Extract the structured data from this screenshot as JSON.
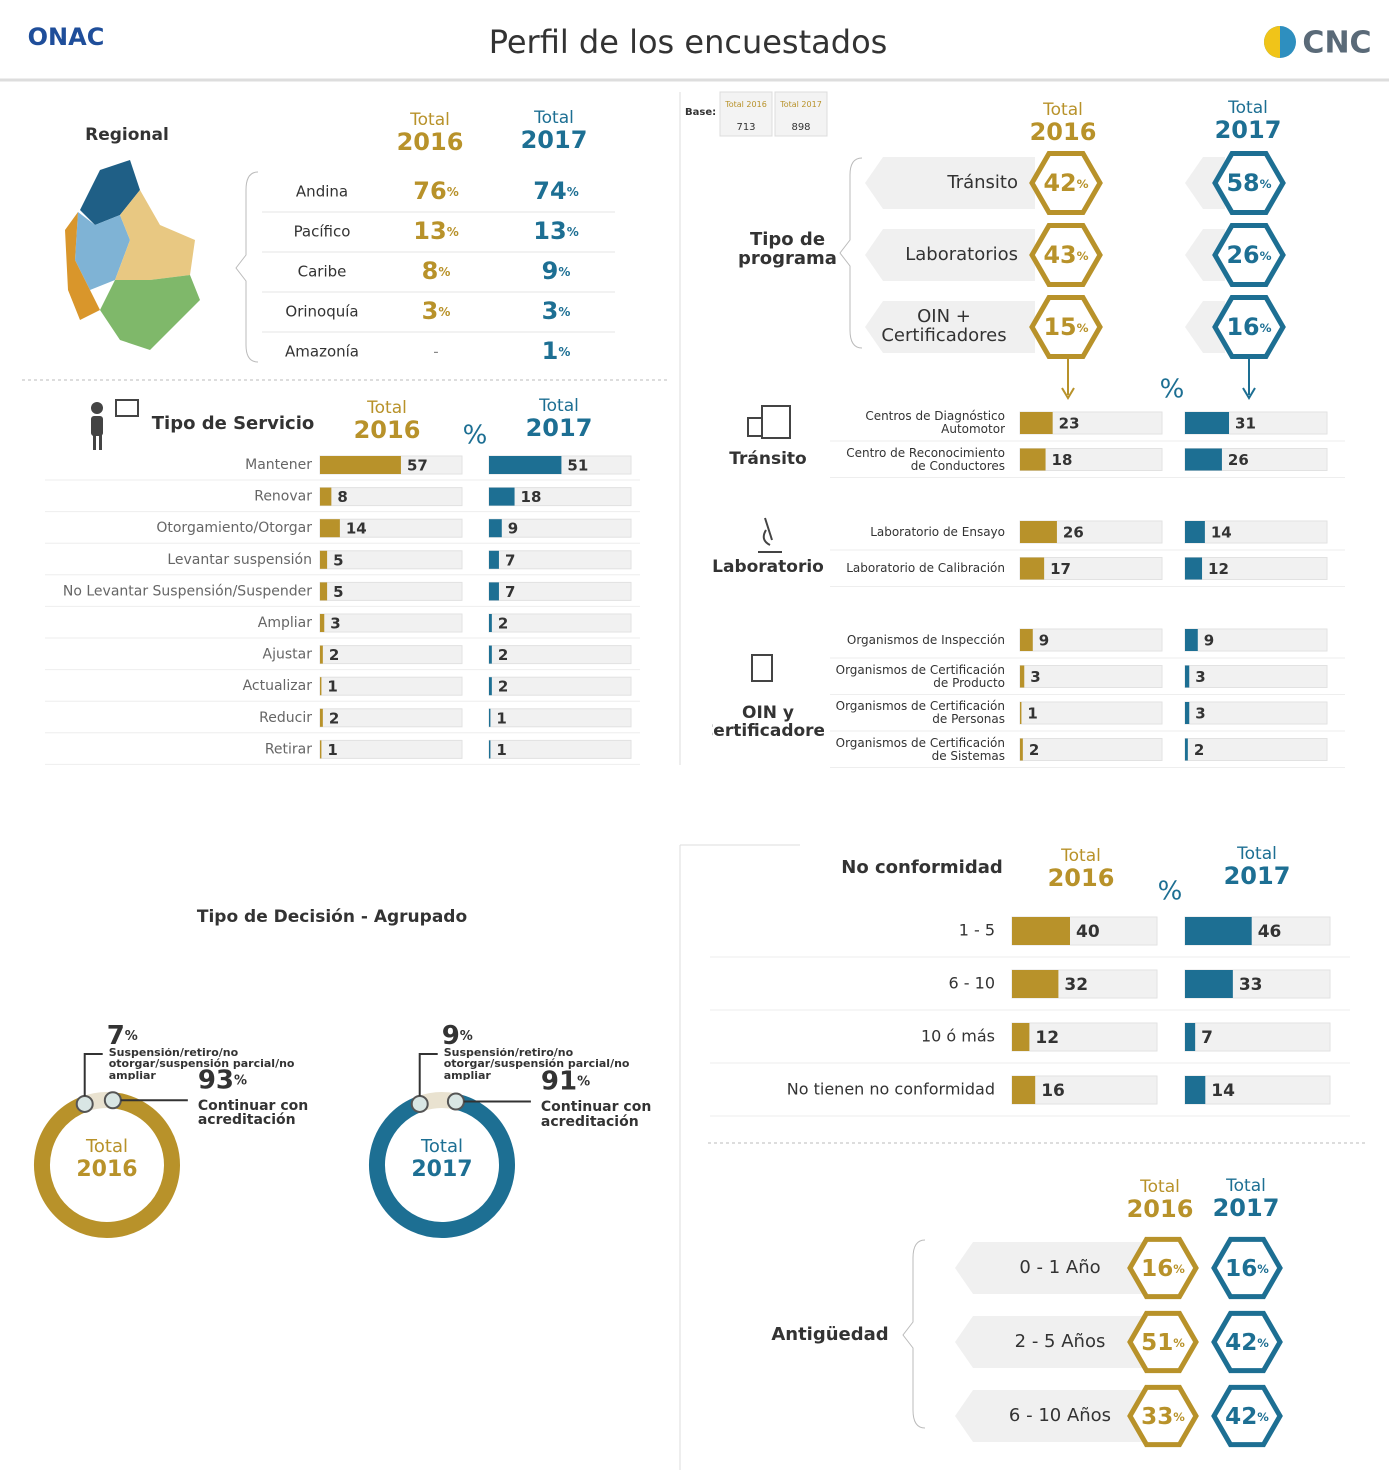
{
  "header": {
    "title": "Perfil de los encuestados",
    "logo_left": "ONAC",
    "logo_right": "CNC"
  },
  "labels": {
    "total": "Total",
    "year_2016": "2016",
    "year_2017": "2017",
    "percent": "%"
  },
  "base": {
    "label": "Base:",
    "columns": [
      "Total 2016",
      "Total 2017"
    ],
    "values": [
      713,
      898
    ]
  },
  "regional": {
    "title": "Regional",
    "missing_label": "-",
    "rows": [
      {
        "name": "Andina",
        "values": [
          76,
          74
        ]
      },
      {
        "name": "Pacífico",
        "values": [
          13,
          13
        ]
      },
      {
        "name": "Caribe",
        "values": [
          8,
          9
        ]
      },
      {
        "name": "Orinoquía",
        "values": [
          3,
          3
        ]
      },
      {
        "name": "Amazonía",
        "values": [
          null,
          1
        ]
      }
    ]
  },
  "servicio": {
    "title": "Tipo de Servicio",
    "xlim": [
      0,
      100
    ],
    "rows": [
      {
        "name": "Mantener",
        "values": [
          57,
          51
        ]
      },
      {
        "name": "Renovar",
        "values": [
          8,
          18
        ]
      },
      {
        "name": "Otorgamiento/Otorgar",
        "values": [
          14,
          9
        ]
      },
      {
        "name": "Levantar suspensión",
        "values": [
          5,
          7
        ]
      },
      {
        "name": "No Levantar Suspensión/Suspender",
        "values": [
          5,
          7
        ]
      },
      {
        "name": "Ampliar",
        "values": [
          3,
          2
        ]
      },
      {
        "name": "Ajustar",
        "values": [
          2,
          2
        ]
      },
      {
        "name": "Actualizar",
        "values": [
          1,
          2
        ]
      },
      {
        "name": "Reducir",
        "values": [
          2,
          1
        ]
      },
      {
        "name": "Retirar",
        "values": [
          1,
          1
        ]
      }
    ]
  },
  "programa": {
    "title": "Tipo de programa",
    "rows": [
      {
        "name": "Tránsito",
        "values": [
          42,
          58
        ]
      },
      {
        "name": "Laboratorios",
        "values": [
          43,
          26
        ]
      },
      {
        "name": "OIN + Certificadores",
        "values": [
          15,
          16
        ]
      }
    ]
  },
  "detalle": {
    "xlim": [
      0,
      100
    ],
    "groups": [
      {
        "name": "Tránsito",
        "rows": [
          {
            "name": "Centros de Diagnóstico Automotor",
            "values": [
              23,
              31
            ]
          },
          {
            "name": "Centro de Reconocimiento de Conductores",
            "values": [
              18,
              26
            ]
          }
        ]
      },
      {
        "name": "Laboratorio",
        "rows": [
          {
            "name": "Laboratorio de Ensayo",
            "values": [
              26,
              14
            ]
          },
          {
            "name": "Laboratorio de Calibración",
            "values": [
              17,
              12
            ]
          }
        ]
      },
      {
        "name": "OIN y Certificadores",
        "rows": [
          {
            "name": "Organismos de Inspección",
            "values": [
              9,
              9
            ]
          },
          {
            "name": "Organismos de Certificación de Producto",
            "values": [
              3,
              3
            ]
          },
          {
            "name": "Organismos de Certificación de Personas",
            "values": [
              1,
              3
            ]
          },
          {
            "name": "Organismos de Certificación de Sistemas",
            "values": [
              2,
              2
            ]
          }
        ]
      }
    ]
  },
  "decision": {
    "title": "Tipo de Decisión - Agrupado",
    "charts": [
      {
        "year": "2016",
        "segments": [
          {
            "value": 7,
            "label": "Suspensión/retiro/no otorgar/suspensión parcial/no ampliar"
          },
          {
            "value": 93,
            "label": "Continuar con acreditación"
          }
        ]
      },
      {
        "year": "2017",
        "segments": [
          {
            "value": 9,
            "label": "Suspensión/retiro/no otorgar/suspensión parcial/no ampliar"
          },
          {
            "value": 91,
            "label": "Continuar con acreditación"
          }
        ]
      }
    ]
  },
  "no_conformidad": {
    "title": "No conformidad",
    "xlim": [
      0,
      100
    ],
    "rows": [
      {
        "name": "1 - 5",
        "values": [
          40,
          46
        ]
      },
      {
        "name": "6 - 10",
        "values": [
          32,
          33
        ]
      },
      {
        "name": "10 ó más",
        "values": [
          12,
          7
        ]
      },
      {
        "name": "No tienen no conformidad",
        "values": [
          16,
          14
        ]
      }
    ]
  },
  "antiguedad": {
    "title": "Antigüedad",
    "rows": [
      {
        "name": "0 - 1 Año",
        "values": [
          16,
          16
        ]
      },
      {
        "name": "2 - 5 Años",
        "values": [
          51,
          42
        ]
      },
      {
        "name": "6 - 10 Años",
        "values": [
          33,
          42
        ]
      }
    ]
  }
}
